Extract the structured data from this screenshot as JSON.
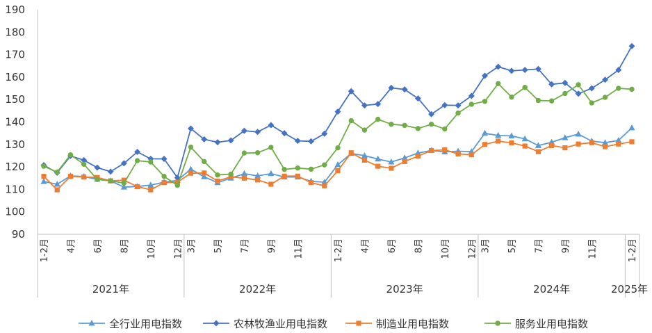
{
  "chart_data": {
    "type": "line",
    "title": "",
    "xlabel": "",
    "ylabel": "",
    "ylim": [
      90,
      190
    ],
    "yticks": [
      "90",
      "100",
      "110",
      "120",
      "130",
      "140",
      "150",
      "160",
      "170",
      "180",
      "190"
    ],
    "grid": false,
    "legend_position": "bottom",
    "month_ticks": [
      {
        "i": 0,
        "label": "1-2月"
      },
      {
        "i": 2,
        "label": "4月"
      },
      {
        "i": 4,
        "label": "6月"
      },
      {
        "i": 6,
        "label": "8月"
      },
      {
        "i": 8,
        "label": "10月"
      },
      {
        "i": 10,
        "label": "12月"
      },
      {
        "i": 11,
        "label": "3月"
      },
      {
        "i": 13,
        "label": "5月"
      },
      {
        "i": 15,
        "label": "7月"
      },
      {
        "i": 17,
        "label": "9月"
      },
      {
        "i": 19,
        "label": "11月"
      },
      {
        "i": 22,
        "label": "1-2月"
      },
      {
        "i": 24,
        "label": "4月"
      },
      {
        "i": 26,
        "label": "6月"
      },
      {
        "i": 28,
        "label": "8月"
      },
      {
        "i": 30,
        "label": "10月"
      },
      {
        "i": 32,
        "label": "12月"
      },
      {
        "i": 33,
        "label": "3月"
      },
      {
        "i": 35,
        "label": "5月"
      },
      {
        "i": 37,
        "label": "7月"
      },
      {
        "i": 39,
        "label": "9月"
      },
      {
        "i": 41,
        "label": "11月"
      },
      {
        "i": 44,
        "label": "1-2月"
      }
    ],
    "years": [
      "2021年",
      "2022年",
      "2023年",
      "2024年",
      "2025年"
    ],
    "series": [
      {
        "name": "全行业用电指数",
        "color": "#5b9bd5",
        "marker": "triangle",
        "values": [
          113.5,
          112.3,
          116,
          115.7,
          114.5,
          113.8,
          111,
          111.3,
          111.9,
          113.2,
          114,
          119,
          115.6,
          113,
          115,
          117,
          116,
          117,
          115.5,
          115.5,
          113.6,
          113.2,
          121,
          126,
          125,
          123.5,
          122.2,
          124,
          126.2,
          127.3,
          126.7,
          127,
          126.8,
          135,
          134,
          133.8,
          132.5,
          129.5,
          131,
          133,
          134.6,
          131.5,
          130.8,
          131.8,
          137.4
        ]
      },
      {
        "name": "农林牧渔业用电指数",
        "color": "#4472c4",
        "marker": "diamond",
        "values": [
          120.8,
          117.4,
          124.9,
          123,
          119.7,
          117.9,
          121.6,
          126.7,
          123.6,
          123.6,
          115.2,
          137.1,
          132.3,
          131,
          131.8,
          136.1,
          135.6,
          138.6,
          135,
          131.6,
          131.4,
          134.8,
          144.6,
          153.7,
          147.4,
          148,
          155.2,
          154.5,
          150.5,
          143.5,
          147.5,
          147.4,
          151.6,
          160.6,
          164.6,
          162.8,
          163.2,
          163.6,
          156.8,
          157.4,
          152.6,
          155,
          158.8,
          163.2,
          173.8
        ]
      },
      {
        "name": "制造业用电指数",
        "color": "#ed7d31",
        "marker": "square",
        "values": [
          115.8,
          109.8,
          115.8,
          115.5,
          115.3,
          113.8,
          114.1,
          111.2,
          109.8,
          113,
          113.2,
          117.2,
          117.3,
          113.7,
          115.6,
          115,
          114.2,
          112.3,
          115.9,
          115.9,
          113,
          111.6,
          118.3,
          126.3,
          123,
          120.3,
          119.4,
          122.4,
          124.8,
          127.3,
          127.6,
          125.8,
          125.4,
          130,
          131.5,
          130.7,
          129.3,
          126.8,
          129.5,
          128.5,
          130.2,
          130.8,
          129,
          130.2,
          131.2
        ]
      },
      {
        "name": "服务业用电指数",
        "color": "#70ad47",
        "marker": "circle",
        "values": [
          120.3,
          117.7,
          125.4,
          121.2,
          114.4,
          113.8,
          112.8,
          122.8,
          122.2,
          115.8,
          111.8,
          128.8,
          122.4,
          116.4,
          116.8,
          126.2,
          126.3,
          128.7,
          118.9,
          119.5,
          119,
          120.9,
          128.5,
          140.6,
          136.4,
          141.2,
          139,
          138.5,
          137.1,
          139,
          136.9,
          144,
          147.9,
          149.2,
          157.1,
          151.1,
          155.4,
          149.6,
          149.4,
          152.7,
          156.6,
          148.5,
          151,
          155,
          154.6
        ]
      }
    ]
  }
}
